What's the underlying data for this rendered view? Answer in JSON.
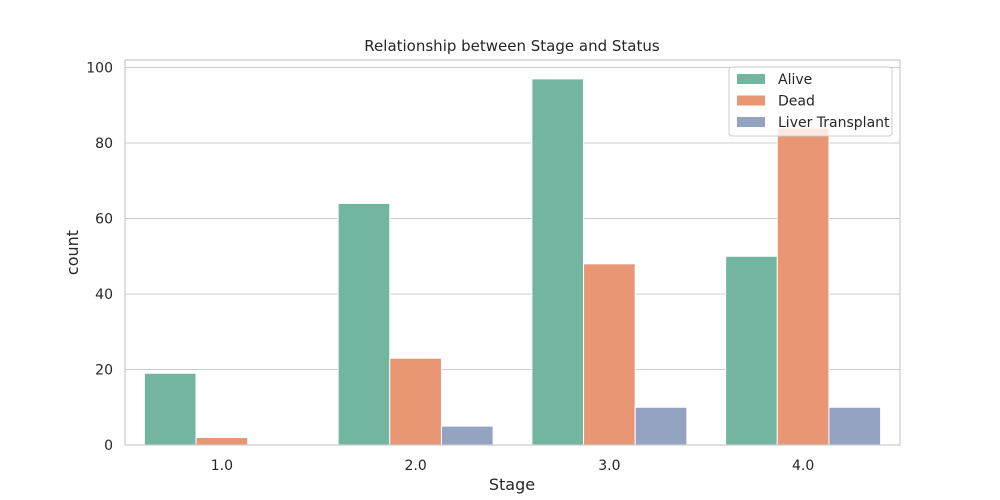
{
  "chart_data": {
    "type": "bar",
    "title": "Relationship between Stage and Status",
    "xlabel": "Stage",
    "ylabel": "count",
    "categories": [
      "1.0",
      "2.0",
      "3.0",
      "4.0"
    ],
    "series": [
      {
        "name": "Alive",
        "values": [
          19,
          64,
          97,
          50
        ],
        "color": "#72b6a1"
      },
      {
        "name": "Dead",
        "values": [
          2,
          23,
          48,
          84
        ],
        "color": "#e99675"
      },
      {
        "name": "Liver Transplant",
        "values": [
          0,
          5,
          10,
          10
        ],
        "color": "#95a3c3"
      }
    ],
    "ylim": [
      0,
      102
    ],
    "yticks": [
      0,
      20,
      40,
      60,
      80,
      100
    ],
    "grid": true,
    "legend_position": "top-right"
  }
}
